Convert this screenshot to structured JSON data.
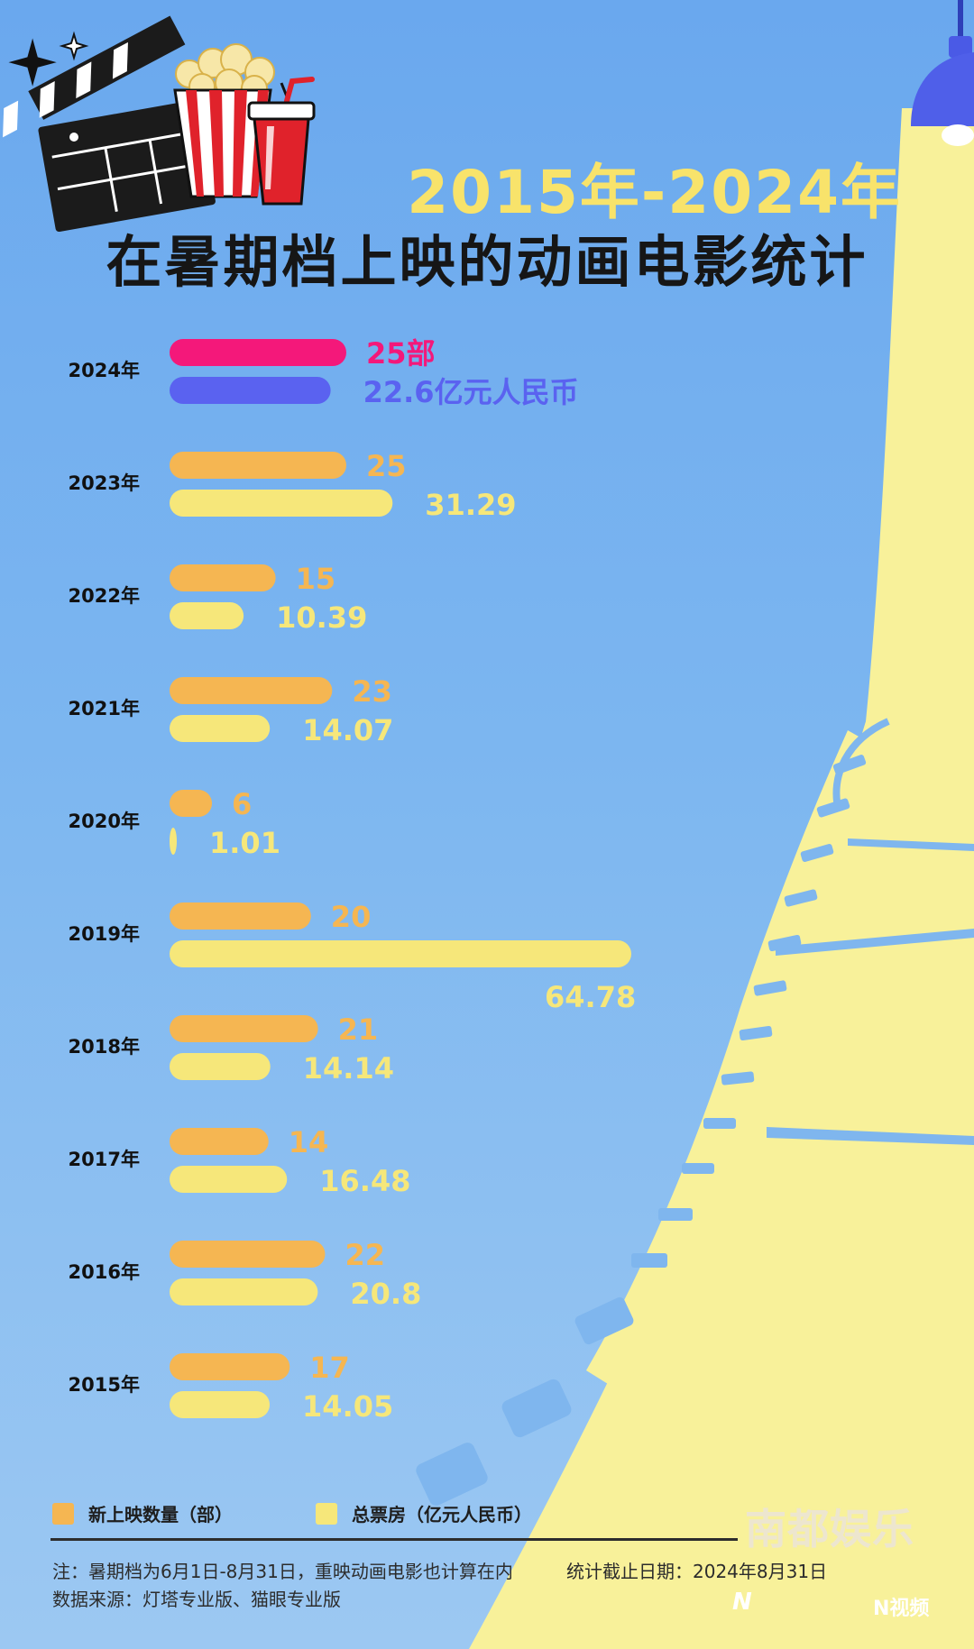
{
  "header": {
    "title_line1": "2015年-2024年",
    "title_line2": "在暑期档上映的动画电影统计"
  },
  "chart_data": {
    "type": "bar",
    "orientation": "horizontal",
    "categories": [
      "2024年",
      "2023年",
      "2022年",
      "2021年",
      "2020年",
      "2019年",
      "2018年",
      "2017年",
      "2016年",
      "2015年"
    ],
    "series": [
      {
        "name": "新上映数量（部）",
        "values": [
          25,
          25,
          15,
          23,
          6,
          20,
          21,
          14,
          22,
          17
        ],
        "labels": [
          "25部",
          "25",
          "15",
          "23",
          "6",
          "20",
          "21",
          "14",
          "22",
          "17"
        ],
        "color": "#f5b652",
        "highlight_color": "#f4187a"
      },
      {
        "name": "总票房（亿元人民币）",
        "values": [
          22.6,
          31.29,
          10.39,
          14.07,
          1.01,
          64.78,
          14.14,
          16.48,
          20.8,
          14.05
        ],
        "labels": [
          "22.6亿元人民币",
          "31.29",
          "10.39",
          "14.07",
          "1.01",
          "64.78",
          "14.14",
          "16.48",
          "20.8",
          "14.05"
        ],
        "color": "#f6e77a",
        "highlight_color": "#5a62f0"
      }
    ],
    "highlight_category": "2024年",
    "grid": false
  },
  "legend": {
    "count_label": "新上映数量（部）",
    "box_office_label": "总票房（亿元人民币）"
  },
  "footer": {
    "note": "注：暑期档为6月1日-8月31日，重映动画电影也计算在内",
    "cutoff": "统计截止日期：2024年8月31日",
    "source": "数据来源：灯塔专业版、猫眼专业版",
    "brand": "南都娱乐",
    "logo_nd": "N",
    "logo_n": "N视频"
  },
  "colors": {
    "sky": "#74b0ef",
    "spotlight": "#f8f19a",
    "title_yellow": "#f8e36b",
    "count_bar": "#f5b652",
    "box_office_bar": "#f6e77a",
    "highlight_count": "#f4187a",
    "highlight_box_office": "#5a62f0"
  },
  "icons": [
    "clapperboard-icon",
    "popcorn-icon",
    "drink-cup-icon",
    "sparkle-icon",
    "lamp-icon",
    "film-strip-icon"
  ]
}
